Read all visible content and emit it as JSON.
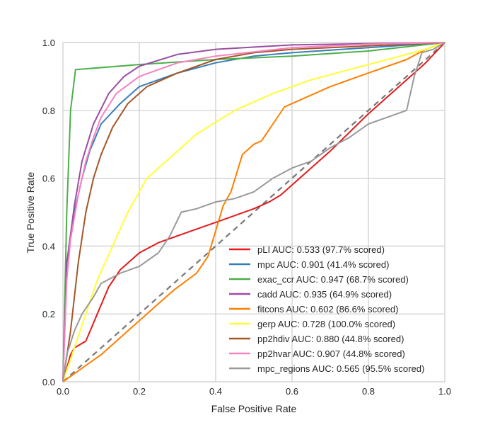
{
  "chart_data": {
    "type": "line",
    "title": "",
    "xlabel": "False Positive Rate",
    "ylabel": "True Positive Rate",
    "xlim": [
      0.0,
      1.0
    ],
    "ylim": [
      0.0,
      1.0
    ],
    "xticks": [
      "0.0",
      "0.2",
      "0.4",
      "0.6",
      "0.8",
      "1.0"
    ],
    "yticks": [
      "0.0",
      "0.2",
      "0.4",
      "0.6",
      "0.8",
      "1.0"
    ],
    "grid": true,
    "legend_position": "lower-right",
    "reference_line": {
      "name": "chance",
      "x": [
        0,
        1
      ],
      "y": [
        0,
        1
      ],
      "color": "#777777",
      "style": "dashed"
    },
    "series": [
      {
        "name": "pLI AUC: 0.533 (97.7% scored)",
        "color": "#e41a1c",
        "x": [
          0,
          0.02,
          0.03,
          0.06,
          0.09,
          0.12,
          0.15,
          0.2,
          0.25,
          0.3,
          0.35,
          0.4,
          0.45,
          0.5,
          0.54,
          0.57,
          0.7,
          0.8,
          0.9,
          0.95,
          1
        ],
        "y": [
          0,
          0.08,
          0.1,
          0.12,
          0.2,
          0.28,
          0.33,
          0.38,
          0.41,
          0.43,
          0.45,
          0.47,
          0.49,
          0.51,
          0.53,
          0.55,
          0.68,
          0.79,
          0.89,
          0.94,
          1
        ]
      },
      {
        "name": "mpc AUC: 0.901 (41.4% scored)",
        "color": "#377eb8",
        "x": [
          0,
          0.01,
          0.03,
          0.05,
          0.07,
          0.1,
          0.15,
          0.2,
          0.3,
          0.4,
          0.5,
          0.6,
          0.8,
          1
        ],
        "y": [
          0,
          0.35,
          0.5,
          0.6,
          0.68,
          0.76,
          0.82,
          0.87,
          0.91,
          0.94,
          0.96,
          0.97,
          0.985,
          1
        ]
      },
      {
        "name": "exac_ccr AUC: 0.947 (68.7% scored)",
        "color": "#4daf4a",
        "x": [
          0,
          0.01,
          0.02,
          0.033,
          0.2,
          0.4,
          0.6,
          0.8,
          1
        ],
        "y": [
          0,
          0.5,
          0.8,
          0.92,
          0.935,
          0.95,
          0.96,
          0.975,
          1
        ]
      },
      {
        "name": "cadd AUC: 0.935 (64.9% scored)",
        "color": "#984ea3",
        "x": [
          0,
          0.01,
          0.03,
          0.05,
          0.08,
          0.12,
          0.16,
          0.2,
          0.3,
          0.4,
          0.6,
          1
        ],
        "y": [
          0,
          0.35,
          0.52,
          0.65,
          0.76,
          0.85,
          0.9,
          0.93,
          0.965,
          0.98,
          0.993,
          1
        ]
      },
      {
        "name": "fitcons AUC: 0.602 (86.6% scored)",
        "color": "#ff7f00",
        "x": [
          0,
          0.05,
          0.1,
          0.15,
          0.2,
          0.25,
          0.29,
          0.35,
          0.38,
          0.42,
          0.44,
          0.47,
          0.5,
          0.52,
          0.55,
          0.58,
          0.62,
          0.7,
          0.8,
          0.9,
          0.95,
          1
        ],
        "y": [
          0,
          0.04,
          0.08,
          0.13,
          0.18,
          0.23,
          0.27,
          0.32,
          0.37,
          0.52,
          0.56,
          0.67,
          0.7,
          0.71,
          0.76,
          0.81,
          0.83,
          0.87,
          0.91,
          0.95,
          0.98,
          1
        ]
      },
      {
        "name": "gerp AUC: 0.728 (100.0% scored)",
        "color": "#ffff33",
        "x": [
          0,
          0.03,
          0.06,
          0.09,
          0.13,
          0.17,
          0.22,
          0.28,
          0.35,
          0.45,
          0.55,
          0.65,
          0.75,
          0.85,
          0.95,
          1
        ],
        "y": [
          0,
          0.1,
          0.2,
          0.3,
          0.4,
          0.5,
          0.6,
          0.66,
          0.73,
          0.8,
          0.85,
          0.89,
          0.92,
          0.95,
          0.98,
          1
        ]
      },
      {
        "name": "pp2hdiv AUC: 0.880 (44.8% scored)",
        "color": "#a65628",
        "x": [
          0,
          0.02,
          0.04,
          0.06,
          0.08,
          0.1,
          0.13,
          0.17,
          0.22,
          0.3,
          0.4,
          0.5,
          0.6,
          0.8,
          1
        ],
        "y": [
          0,
          0.15,
          0.35,
          0.5,
          0.6,
          0.67,
          0.75,
          0.82,
          0.87,
          0.91,
          0.95,
          0.97,
          0.98,
          0.99,
          1
        ]
      },
      {
        "name": "pp2hvar AUC: 0.907 (44.8% scored)",
        "color": "#f781bf",
        "x": [
          0,
          0.01,
          0.02,
          0.04,
          0.06,
          0.08,
          0.1,
          0.14,
          0.2,
          0.3,
          0.4,
          0.6,
          0.8,
          1
        ],
        "y": [
          0,
          0.3,
          0.42,
          0.55,
          0.65,
          0.72,
          0.78,
          0.85,
          0.9,
          0.94,
          0.96,
          0.985,
          0.995,
          1
        ]
      },
      {
        "name": "mpc_regions AUC: 0.565 (95.5% scored)",
        "color": "#999999",
        "x": [
          0,
          0.01,
          0.03,
          0.05,
          0.08,
          0.1,
          0.15,
          0.2,
          0.25,
          0.28,
          0.31,
          0.35,
          0.4,
          0.45,
          0.5,
          0.55,
          0.6,
          0.65,
          0.7,
          0.75,
          0.8,
          0.85,
          0.9,
          0.92,
          0.94,
          0.97,
          1
        ],
        "y": [
          0,
          0.08,
          0.15,
          0.2,
          0.25,
          0.29,
          0.32,
          0.34,
          0.38,
          0.43,
          0.5,
          0.51,
          0.53,
          0.54,
          0.56,
          0.6,
          0.63,
          0.65,
          0.69,
          0.72,
          0.76,
          0.78,
          0.8,
          0.9,
          0.97,
          0.98,
          1
        ]
      }
    ]
  }
}
